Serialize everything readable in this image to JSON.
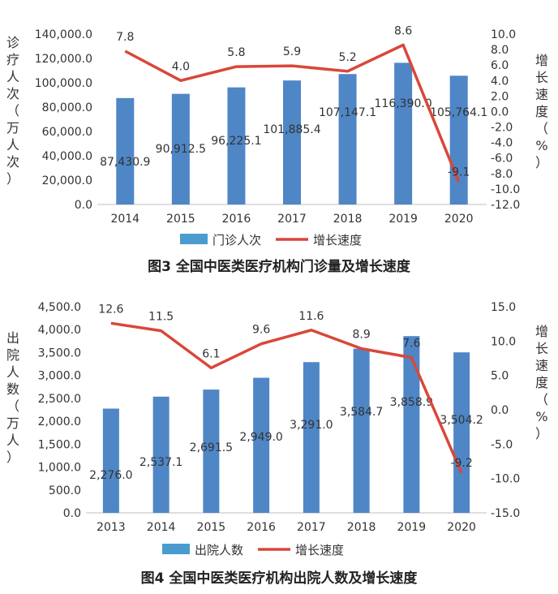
{
  "chart_data": [
    {
      "type": "bar",
      "title": "图3 全国中医类医疗机构门诊量及增长速度",
      "categories": [
        "2014",
        "2015",
        "2016",
        "2017",
        "2018",
        "2019",
        "2020"
      ],
      "series": [
        {
          "name": "门诊人次",
          "kind": "bar",
          "axis": "left",
          "values": [
            87430.9,
            90912.5,
            96225.1,
            101885.4,
            107147.1,
            116390.0,
            105764.1
          ],
          "labels": [
            "87,430.9",
            "90,912.5",
            "96,225.1",
            "101,885.4",
            "107,147.1",
            "116,390.0",
            "105,764.1"
          ]
        },
        {
          "name": "增长速度",
          "kind": "line",
          "axis": "right",
          "values": [
            7.8,
            4.0,
            5.8,
            5.9,
            5.2,
            8.6,
            -9.1
          ],
          "labels": [
            "7.8",
            "4.0",
            "5.8",
            "5.9",
            "5.2",
            "8.6",
            "-9.1"
          ]
        }
      ],
      "ylabel": "诊疗人次（万人次）",
      "y2label": "增长速度（%）",
      "ylim": [
        0,
        140000
      ],
      "y2lim": [
        -12,
        10
      ],
      "yticks": [
        "0.0",
        "20,000.0",
        "40,000.0",
        "60,000.0",
        "80,000.0",
        "100,000.0",
        "120,000.0",
        "140,000.0"
      ],
      "y2ticks": [
        "-12.0",
        "-10.0",
        "-8.0",
        "-6.0",
        "-4.0",
        "-2.0",
        "0.0",
        "2.0",
        "4.0",
        "6.0",
        "8.0",
        "10.0"
      ],
      "legend": [
        "门诊人次",
        "增长速度"
      ],
      "legend_position": "bottom",
      "grid": false
    },
    {
      "type": "bar",
      "title": "图4 全国中医类医疗机构出院人数及增长速度",
      "categories": [
        "2013",
        "2014",
        "2015",
        "2016",
        "2017",
        "2018",
        "2019",
        "2020"
      ],
      "series": [
        {
          "name": "出院人数",
          "kind": "bar",
          "axis": "left",
          "values": [
            2276.0,
            2537.1,
            2691.5,
            2949.0,
            3291.0,
            3584.7,
            3858.9,
            3504.2
          ],
          "labels": [
            "2,276.0",
            "2,537.1",
            "2,691.5",
            "2,949.0",
            "3,291.0",
            "3,584.7",
            "3,858.9",
            "3,504.2"
          ]
        },
        {
          "name": "增长速度",
          "kind": "line",
          "axis": "right",
          "values": [
            12.6,
            11.5,
            6.1,
            9.6,
            11.6,
            8.9,
            7.6,
            -9.2
          ],
          "labels": [
            "12.6",
            "11.5",
            "6.1",
            "9.6",
            "11.6",
            "8.9",
            "7.6",
            "-9.2"
          ]
        }
      ],
      "ylabel": "出院人数（万人）",
      "y2label": "增长速度（%）",
      "ylim": [
        0,
        4500
      ],
      "y2lim": [
        -15,
        15
      ],
      "yticks": [
        "0.0",
        "500.0",
        "1,000.0",
        "1,500.0",
        "2,000.0",
        "2,500.0",
        "3,000.0",
        "3,500.0",
        "4,000.0",
        "4,500.0"
      ],
      "y2ticks": [
        "-15.0",
        "-10.0",
        "-5.0",
        "0.0",
        "5.0",
        "10.0",
        "15.0"
      ],
      "legend": [
        "出院人数",
        "增长速度"
      ],
      "legend_position": "bottom",
      "grid": false
    }
  ],
  "colors": {
    "bar": "#4f86c6",
    "line": "#d9473a",
    "legend_bar": "#4a9cd0",
    "axis": "#bfbfbf"
  }
}
